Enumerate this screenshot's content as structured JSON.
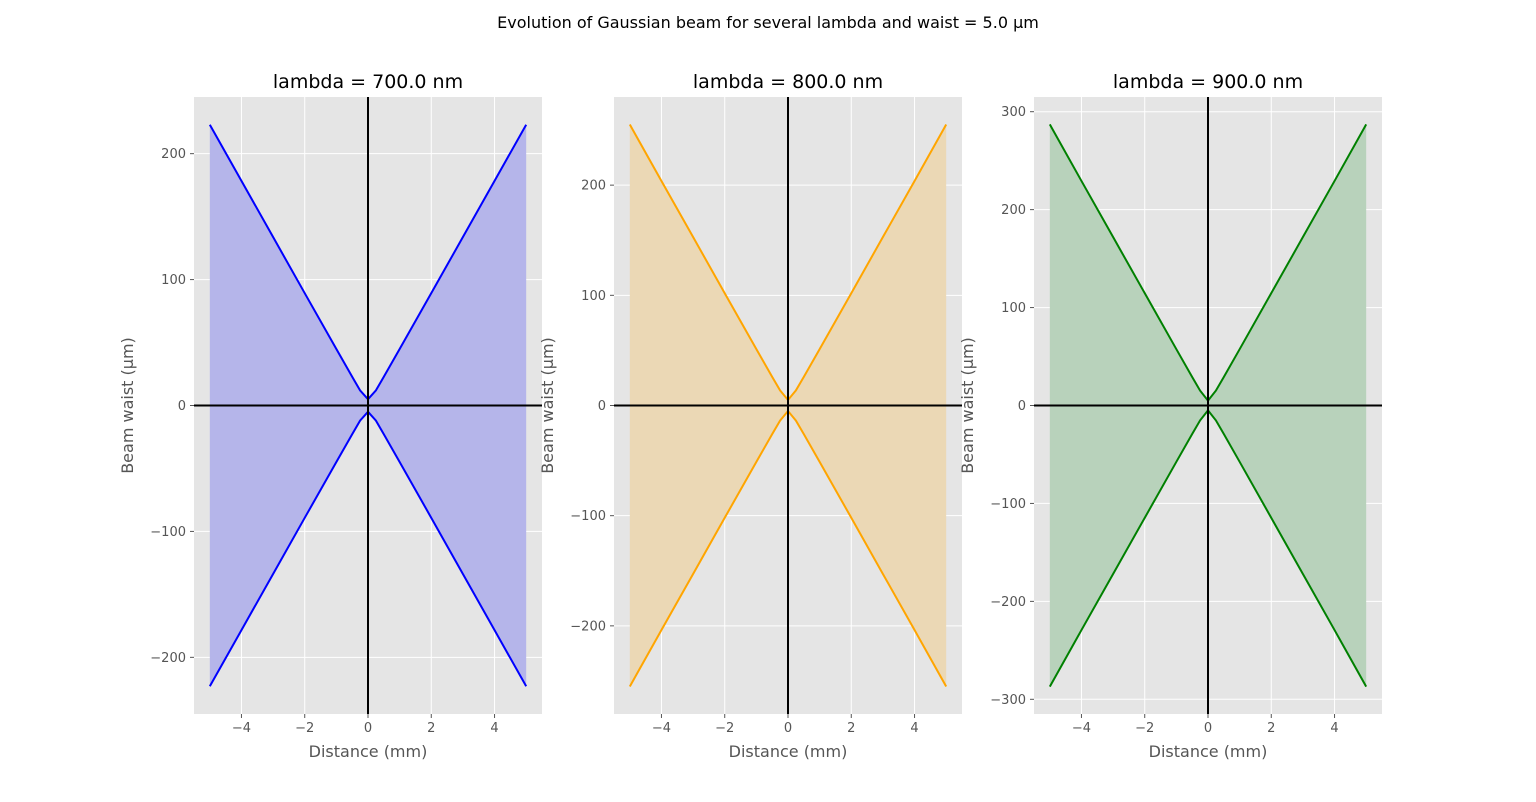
{
  "figure": {
    "suptitle": "Evolution of Gaussian beam for several lambda and waist  = 5.0 µm"
  },
  "chart_data": [
    {
      "type": "area",
      "title": "lambda = 700.0 nm",
      "xlabel": "Distance (mm)",
      "ylabel": "Beam waist (µm)",
      "color": "#0000ff",
      "fill": "#b5b5ea",
      "background": "#e5e5e5",
      "grid": true,
      "xlim": [
        -5.5,
        5.5
      ],
      "ylim": [
        -245,
        245
      ],
      "xticks": [
        -4,
        -2,
        0,
        2,
        4
      ],
      "xtick_labels": [
        "−4",
        "−2",
        "0",
        "2",
        "4"
      ],
      "yticks": [
        -200,
        -100,
        0,
        100,
        200
      ],
      "ytick_labels": [
        "−200",
        "−100",
        "0",
        "100",
        "200"
      ],
      "series": [
        {
          "x": [
            -5,
            -4,
            -3,
            -2,
            -1,
            -0.5,
            -0.25,
            0,
            0.25,
            0.5,
            1,
            2,
            3,
            4,
            5
          ],
          "values": [
            223,
            178.4,
            133.8,
            89.2,
            44.9,
            22.8,
            12,
            5,
            12,
            22.8,
            44.9,
            89.2,
            133.8,
            178.4,
            223
          ]
        },
        {
          "x": [
            -5,
            -4,
            -3,
            -2,
            -1,
            -0.5,
            -0.25,
            0,
            0.25,
            0.5,
            1,
            2,
            3,
            4,
            5
          ],
          "values": [
            -223,
            -178.4,
            -133.8,
            -89.2,
            -44.9,
            -22.8,
            -12,
            -5,
            -12,
            -22.8,
            -44.9,
            -89.2,
            -133.8,
            -178.4,
            -223
          ]
        }
      ]
    },
    {
      "type": "area",
      "title": "lambda = 800.0 nm",
      "xlabel": "Distance (mm)",
      "ylabel": "Beam waist (µm)",
      "color": "#ffa500",
      "fill": "#ebd8b5",
      "background": "#e5e5e5",
      "grid": true,
      "xlim": [
        -5.5,
        5.5
      ],
      "ylim": [
        -280,
        280
      ],
      "xticks": [
        -4,
        -2,
        0,
        2,
        4
      ],
      "xtick_labels": [
        "−4",
        "−2",
        "0",
        "2",
        "4"
      ],
      "yticks": [
        -200,
        -100,
        0,
        100,
        200
      ],
      "ytick_labels": [
        "−200",
        "−100",
        "0",
        "100",
        "200"
      ],
      "series": [
        {
          "x": [
            -5,
            -4,
            -3,
            -2,
            -1,
            -0.5,
            -0.25,
            0,
            0.25,
            0.5,
            1,
            2,
            3,
            4,
            5
          ],
          "values": [
            255,
            203.8,
            152.9,
            101.9,
            51.2,
            26,
            13.7,
            5,
            13.7,
            26,
            51.2,
            101.9,
            152.9,
            203.8,
            255
          ]
        },
        {
          "x": [
            -5,
            -4,
            -3,
            -2,
            -1,
            -0.5,
            -0.25,
            0,
            0.25,
            0.5,
            1,
            2,
            3,
            4,
            5
          ],
          "values": [
            -255,
            -203.8,
            -152.9,
            -101.9,
            -51.2,
            -26,
            -13.7,
            -5,
            -13.7,
            -26,
            -51.2,
            -101.9,
            -152.9,
            -203.8,
            -255
          ]
        }
      ]
    },
    {
      "type": "area",
      "title": "lambda = 900.0 nm",
      "xlabel": "Distance (mm)",
      "ylabel": "Beam waist (µm)",
      "color": "#008000",
      "fill": "#b8d2bb",
      "background": "#e5e5e5",
      "grid": true,
      "xlim": [
        -5.5,
        5.5
      ],
      "ylim": [
        -315,
        315
      ],
      "xticks": [
        -4,
        -2,
        0,
        2,
        4
      ],
      "xtick_labels": [
        "−4",
        "−2",
        "0",
        "2",
        "4"
      ],
      "yticks": [
        -300,
        -200,
        -100,
        0,
        100,
        200,
        300
      ],
      "ytick_labels": [
        "−300",
        "−200",
        "−100",
        "0",
        "100",
        "200",
        "300"
      ],
      "series": [
        {
          "x": [
            -5,
            -4,
            -3,
            -2,
            -1,
            -0.5,
            -0.25,
            0,
            0.25,
            0.5,
            1,
            2,
            3,
            4,
            5
          ],
          "values": [
            287,
            229.3,
            172,
            114.7,
            57.5,
            29.1,
            15.2,
            5,
            15.2,
            29.1,
            57.5,
            114.7,
            172,
            229.3,
            287
          ]
        },
        {
          "x": [
            -5,
            -4,
            -3,
            -2,
            -1,
            -0.5,
            -0.25,
            0,
            0.25,
            0.5,
            1,
            2,
            3,
            4,
            5
          ],
          "values": [
            -287,
            -229.3,
            -172,
            -114.7,
            -57.5,
            -29.1,
            -15.2,
            -5,
            -15.2,
            -29.1,
            -57.5,
            -114.7,
            -172,
            -229.3,
            -287
          ]
        }
      ]
    }
  ]
}
